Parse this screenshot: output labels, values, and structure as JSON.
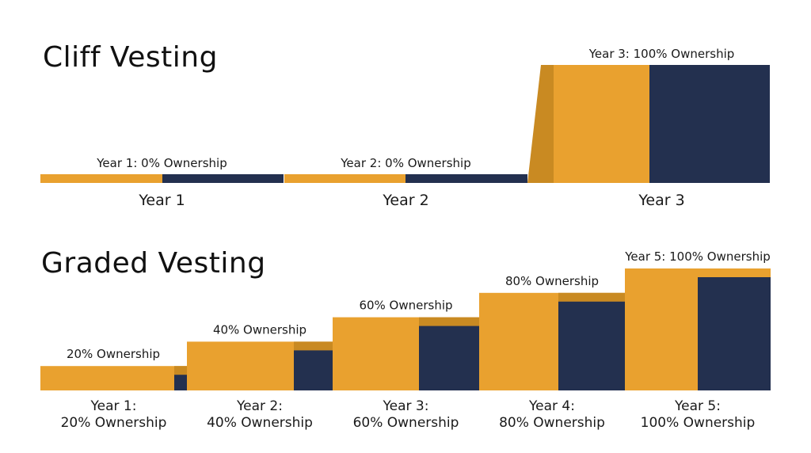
{
  "colors": {
    "gold": "#E9A12F",
    "gold_shadow": "#C98A22",
    "navy": "#23304F",
    "text": "#1a1a1a"
  },
  "chart_data": [
    {
      "type": "bar",
      "title": "Cliff Vesting",
      "categories": [
        "Year 1",
        "Year 2",
        "Year 3"
      ],
      "values": [
        0,
        0,
        100
      ],
      "value_labels": [
        "Year 1: 0% Ownership",
        "Year 2: 0% Ownership",
        "Year 3: 100% Ownership"
      ],
      "ylim": [
        0,
        100
      ],
      "unit": "%"
    },
    {
      "type": "bar",
      "title": "Graded Vesting",
      "categories": [
        "Year 1:",
        "Year 2:",
        "Year 3:",
        "Year 4:",
        "Year 5:"
      ],
      "category_sublabels": [
        "20% Ownership",
        "40% Ownership",
        "60% Ownership",
        "80% Ownership",
        "100% Ownership"
      ],
      "values": [
        20,
        40,
        60,
        80,
        100
      ],
      "value_labels": [
        "20% Ownership",
        "40% Ownership",
        "60% Ownership",
        "80% Ownership",
        "Year 5: 100% Ownership"
      ],
      "ylim": [
        0,
        100
      ],
      "unit": "%"
    }
  ]
}
